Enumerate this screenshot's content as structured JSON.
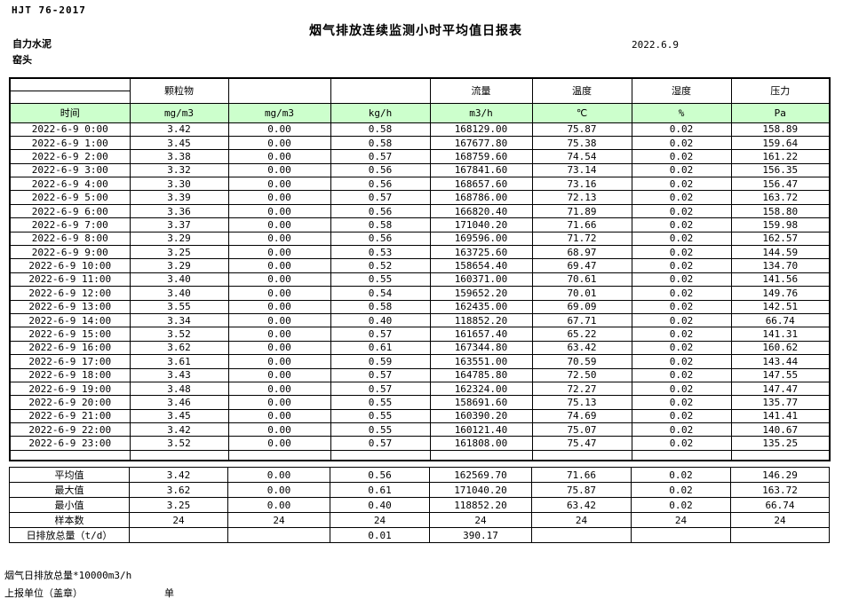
{
  "doc": {
    "standard_code": "HJT  76-2017",
    "title": "烟气排放连续监测小时平均值日报表",
    "date": "2022.6.9",
    "company": "自力水泥",
    "station": "窑头"
  },
  "table": {
    "header_fill": "#CCFFCC",
    "group_headers": [
      "",
      "颗粒物",
      "",
      "",
      "流量",
      "温度",
      "湿度",
      "压力"
    ],
    "unit_row": [
      "时间",
      "mg/m3",
      "mg/m3",
      "kg/h",
      "m3/h",
      "℃",
      "%",
      "Pa"
    ],
    "rows": [
      [
        "2022-6-9 0:00",
        "3.42",
        "0.00",
        "0.58",
        "168129.00",
        "75.87",
        "0.02",
        "158.89"
      ],
      [
        "2022-6-9 1:00",
        "3.45",
        "0.00",
        "0.58",
        "167677.80",
        "75.38",
        "0.02",
        "159.64"
      ],
      [
        "2022-6-9 2:00",
        "3.38",
        "0.00",
        "0.57",
        "168759.60",
        "74.54",
        "0.02",
        "161.22"
      ],
      [
        "2022-6-9 3:00",
        "3.32",
        "0.00",
        "0.56",
        "167841.60",
        "73.14",
        "0.02",
        "156.35"
      ],
      [
        "2022-6-9 4:00",
        "3.30",
        "0.00",
        "0.56",
        "168657.60",
        "73.16",
        "0.02",
        "156.47"
      ],
      [
        "2022-6-9 5:00",
        "3.39",
        "0.00",
        "0.57",
        "168786.00",
        "72.13",
        "0.02",
        "163.72"
      ],
      [
        "2022-6-9 6:00",
        "3.36",
        "0.00",
        "0.56",
        "166820.40",
        "71.89",
        "0.02",
        "158.80"
      ],
      [
        "2022-6-9 7:00",
        "3.37",
        "0.00",
        "0.58",
        "171040.20",
        "71.66",
        "0.02",
        "159.98"
      ],
      [
        "2022-6-9 8:00",
        "3.29",
        "0.00",
        "0.56",
        "169596.00",
        "71.72",
        "0.02",
        "162.57"
      ],
      [
        "2022-6-9 9:00",
        "3.25",
        "0.00",
        "0.53",
        "163725.60",
        "68.97",
        "0.02",
        "144.59"
      ],
      [
        "2022-6-9 10:00",
        "3.29",
        "0.00",
        "0.52",
        "158654.40",
        "69.47",
        "0.02",
        "134.70"
      ],
      [
        "2022-6-9 11:00",
        "3.40",
        "0.00",
        "0.55",
        "160371.00",
        "70.61",
        "0.02",
        "141.56"
      ],
      [
        "2022-6-9 12:00",
        "3.40",
        "0.00",
        "0.54",
        "159652.20",
        "70.01",
        "0.02",
        "149.76"
      ],
      [
        "2022-6-9 13:00",
        "3.55",
        "0.00",
        "0.58",
        "162435.00",
        "69.09",
        "0.02",
        "142.51"
      ],
      [
        "2022-6-9 14:00",
        "3.34",
        "0.00",
        "0.40",
        "118852.20",
        "67.71",
        "0.02",
        "66.74"
      ],
      [
        "2022-6-9 15:00",
        "3.52",
        "0.00",
        "0.57",
        "161657.40",
        "65.22",
        "0.02",
        "141.31"
      ],
      [
        "2022-6-9 16:00",
        "3.62",
        "0.00",
        "0.61",
        "167344.80",
        "63.42",
        "0.02",
        "160.62"
      ],
      [
        "2022-6-9 17:00",
        "3.61",
        "0.00",
        "0.59",
        "163551.00",
        "70.59",
        "0.02",
        "143.44"
      ],
      [
        "2022-6-9 18:00",
        "3.43",
        "0.00",
        "0.57",
        "164785.80",
        "72.50",
        "0.02",
        "147.55"
      ],
      [
        "2022-6-9 19:00",
        "3.48",
        "0.00",
        "0.57",
        "162324.00",
        "72.27",
        "0.02",
        "147.47"
      ],
      [
        "2022-6-9 20:00",
        "3.46",
        "0.00",
        "0.55",
        "158691.60",
        "75.13",
        "0.02",
        "135.77"
      ],
      [
        "2022-6-9 21:00",
        "3.45",
        "0.00",
        "0.55",
        "160390.20",
        "74.69",
        "0.02",
        "141.41"
      ],
      [
        "2022-6-9 22:00",
        "3.42",
        "0.00",
        "0.55",
        "160121.40",
        "75.07",
        "0.02",
        "140.67"
      ],
      [
        "2022-6-9 23:00",
        "3.52",
        "0.00",
        "0.57",
        "161808.00",
        "75.47",
        "0.02",
        "135.25"
      ]
    ],
    "summary_rows": [
      [
        "平均值",
        "3.42",
        "0.00",
        "0.56",
        "162569.70",
        "71.66",
        "0.02",
        "146.29"
      ],
      [
        "最大值",
        "3.62",
        "0.00",
        "0.61",
        "171040.20",
        "75.87",
        "0.02",
        "163.72"
      ],
      [
        "最小值",
        "3.25",
        "0.00",
        "0.40",
        "118852.20",
        "63.42",
        "0.02",
        "66.74"
      ],
      [
        "样本数",
        "24",
        "24",
        "24",
        "24",
        "24",
        "24",
        "24"
      ],
      [
        "日排放总量（t/d）",
        "",
        "",
        "0.01",
        "390.17",
        "",
        "",
        ""
      ]
    ]
  },
  "footer": {
    "note": "烟气日排放总量*10000m3/h",
    "report_unit_label": "上报单位（盖章）",
    "unit_label": "单位"
  }
}
